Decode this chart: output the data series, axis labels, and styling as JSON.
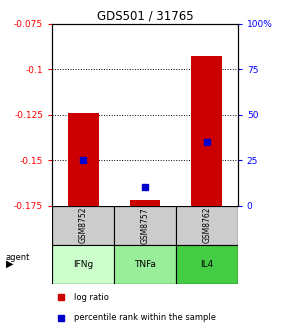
{
  "title": "GDS501 / 31765",
  "samples": [
    "GSM8752",
    "GSM8757",
    "GSM8762"
  ],
  "agents": [
    "IFNg",
    "TNFa",
    "IL4"
  ],
  "agent_colors": [
    "#ccffcc",
    "#99ee99",
    "#44cc44"
  ],
  "bar_bottom": -0.175,
  "log_ratios": [
    -0.124,
    -0.172,
    -0.093
  ],
  "percentile_ranks": [
    0.25,
    0.1,
    0.35
  ],
  "ylim_left": [
    -0.175,
    -0.075
  ],
  "ylim_right": [
    0.0,
    1.0
  ],
  "yticks_left": [
    -0.175,
    -0.15,
    -0.125,
    -0.1,
    -0.075
  ],
  "ytick_labels_left": [
    "-0.175",
    "-0.15",
    "-0.125",
    "-0.1",
    "-0.075"
  ],
  "yticks_right": [
    0.0,
    0.25,
    0.5,
    0.75,
    1.0
  ],
  "ytick_labels_right": [
    "0",
    "25",
    "50",
    "75",
    "100%"
  ],
  "bar_color": "#cc0000",
  "point_color": "#0000cc",
  "sample_box_color": "#cccccc",
  "bar_width": 0.5,
  "legend_red": "log ratio",
  "legend_blue": "percentile rank within the sample"
}
